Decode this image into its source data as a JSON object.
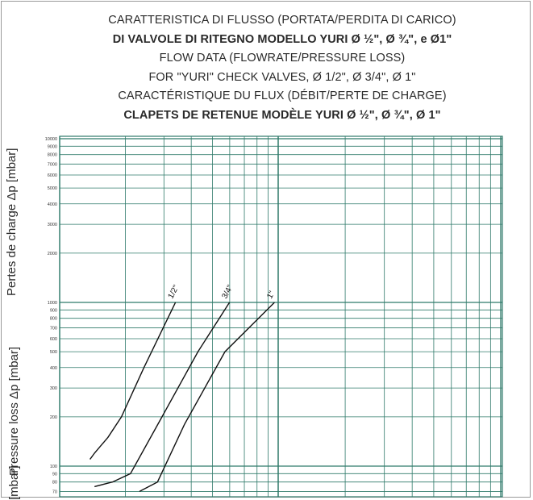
{
  "chart_data": {
    "type": "line",
    "title_lines": [
      "CARATTERISTICA DI FLUSSO (PORTATA/PERDITA DI CARICO)",
      "DI VALVOLE DI RITEGNO MODELLO YURI Ø ½\", Ø ¾\", e Ø1\"",
      "FLOW DATA (FLOWRATE/PRESSURE LOSS)",
      "FOR \"YURI\" CHECK VALVES, Ø 1/2\", Ø 3/4\", Ø 1\"",
      "CARACTÉRISTIQUE DU FLUX (DÉBIT/PERTE DE CHARGE)",
      "CLAPETS DE RETENUE MODÈLE YURI Ø ½\", Ø ¾\", Ø 1\""
    ],
    "ylabels": [
      "Pertes de charge Δp [mbar]",
      "Pressure loss  Δp [mbar]",
      "[mbar]"
    ],
    "yscale": "log",
    "grid": true,
    "ylim": [
      70,
      10000
    ],
    "yticks": [
      10000,
      9000,
      8000,
      7000,
      6000,
      5000,
      4000,
      3000,
      2000,
      1000,
      900,
      800,
      700,
      600,
      500,
      400,
      300,
      200,
      100,
      90,
      80,
      70
    ],
    "series": [
      {
        "name": "1/2\"",
        "points": [
          [
            0.1,
            110
          ],
          [
            0.2,
            120
          ],
          [
            0.5,
            150
          ],
          [
            0.8,
            200
          ],
          [
            1.3,
            400
          ],
          [
            2,
            1000
          ]
        ]
      },
      {
        "name": "3/4\"",
        "points": [
          [
            0.2,
            75
          ],
          [
            0.6,
            80
          ],
          [
            1.0,
            90
          ],
          [
            1.7,
            200
          ],
          [
            2.5,
            500
          ],
          [
            3.2,
            1000
          ]
        ]
      },
      {
        "name": "1\"",
        "points": [
          [
            1.2,
            70
          ],
          [
            1.6,
            80
          ],
          [
            2.2,
            180
          ],
          [
            3.1,
            500
          ],
          [
            4.2,
            1000
          ]
        ]
      }
    ]
  }
}
